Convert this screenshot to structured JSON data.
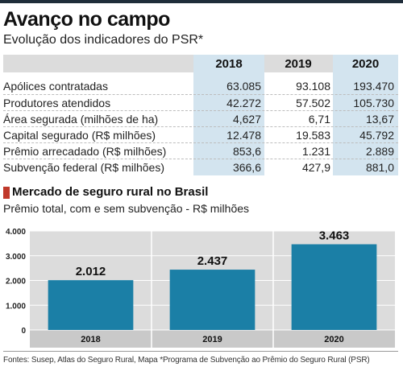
{
  "header": {
    "title": "Avanço no campo",
    "subtitle": "Evolução dos indicadores do PSR*"
  },
  "table": {
    "columns": [
      "2018",
      "2019",
      "2020"
    ],
    "rows": [
      {
        "label": "Apólices contratadas",
        "values": [
          "63.085",
          "93.108",
          "193.470"
        ]
      },
      {
        "label": "Produtores atendidos",
        "values": [
          "42.272",
          "57.502",
          "105.730"
        ]
      },
      {
        "label": "Área segurada (milhões de ha)",
        "values": [
          "4,627",
          "6,71",
          "13,67"
        ]
      },
      {
        "label": "Capital segurado (R$ milhões)",
        "values": [
          "12.478",
          "19.583",
          "45.792"
        ]
      },
      {
        "label": "Prêmio arrecadado (R$ milhões)",
        "values": [
          "853,6",
          "1.231",
          "2.889"
        ]
      },
      {
        "label": "Subvenção federal (R$ milhões)",
        "values": [
          "366,6",
          "427,9",
          "881,0"
        ]
      }
    ]
  },
  "section": {
    "title": "Mercado de seguro rural no Brasil",
    "subtitle": "Prêmio total, com e sem subvenção - R$ milhões",
    "marker_color": "#c0392b"
  },
  "chart_data": {
    "type": "bar",
    "title": "Mercado de seguro rural no Brasil",
    "subtitle": "Prêmio total, com e sem subvenção - R$ milhões",
    "categories": [
      "2018",
      "2019",
      "2020"
    ],
    "values": [
      2012,
      2437,
      3463
    ],
    "value_labels": [
      "2.012",
      "2.437",
      "3.463"
    ],
    "ylim": [
      0,
      4000
    ],
    "yticks": [
      0,
      1000,
      2000,
      3000,
      4000
    ],
    "ytick_labels": [
      "0",
      "1.000",
      "2.000",
      "3.000",
      "4.000"
    ],
    "xlabel": "",
    "ylabel": "",
    "grid": true,
    "bar_color": "#1b7fa6"
  },
  "footer": {
    "text": "Fontes: Susep, Atlas do Seguro Rural, Mapa *Programa de Subvenção ao Prêmio do Seguro Rural (PSR)"
  }
}
